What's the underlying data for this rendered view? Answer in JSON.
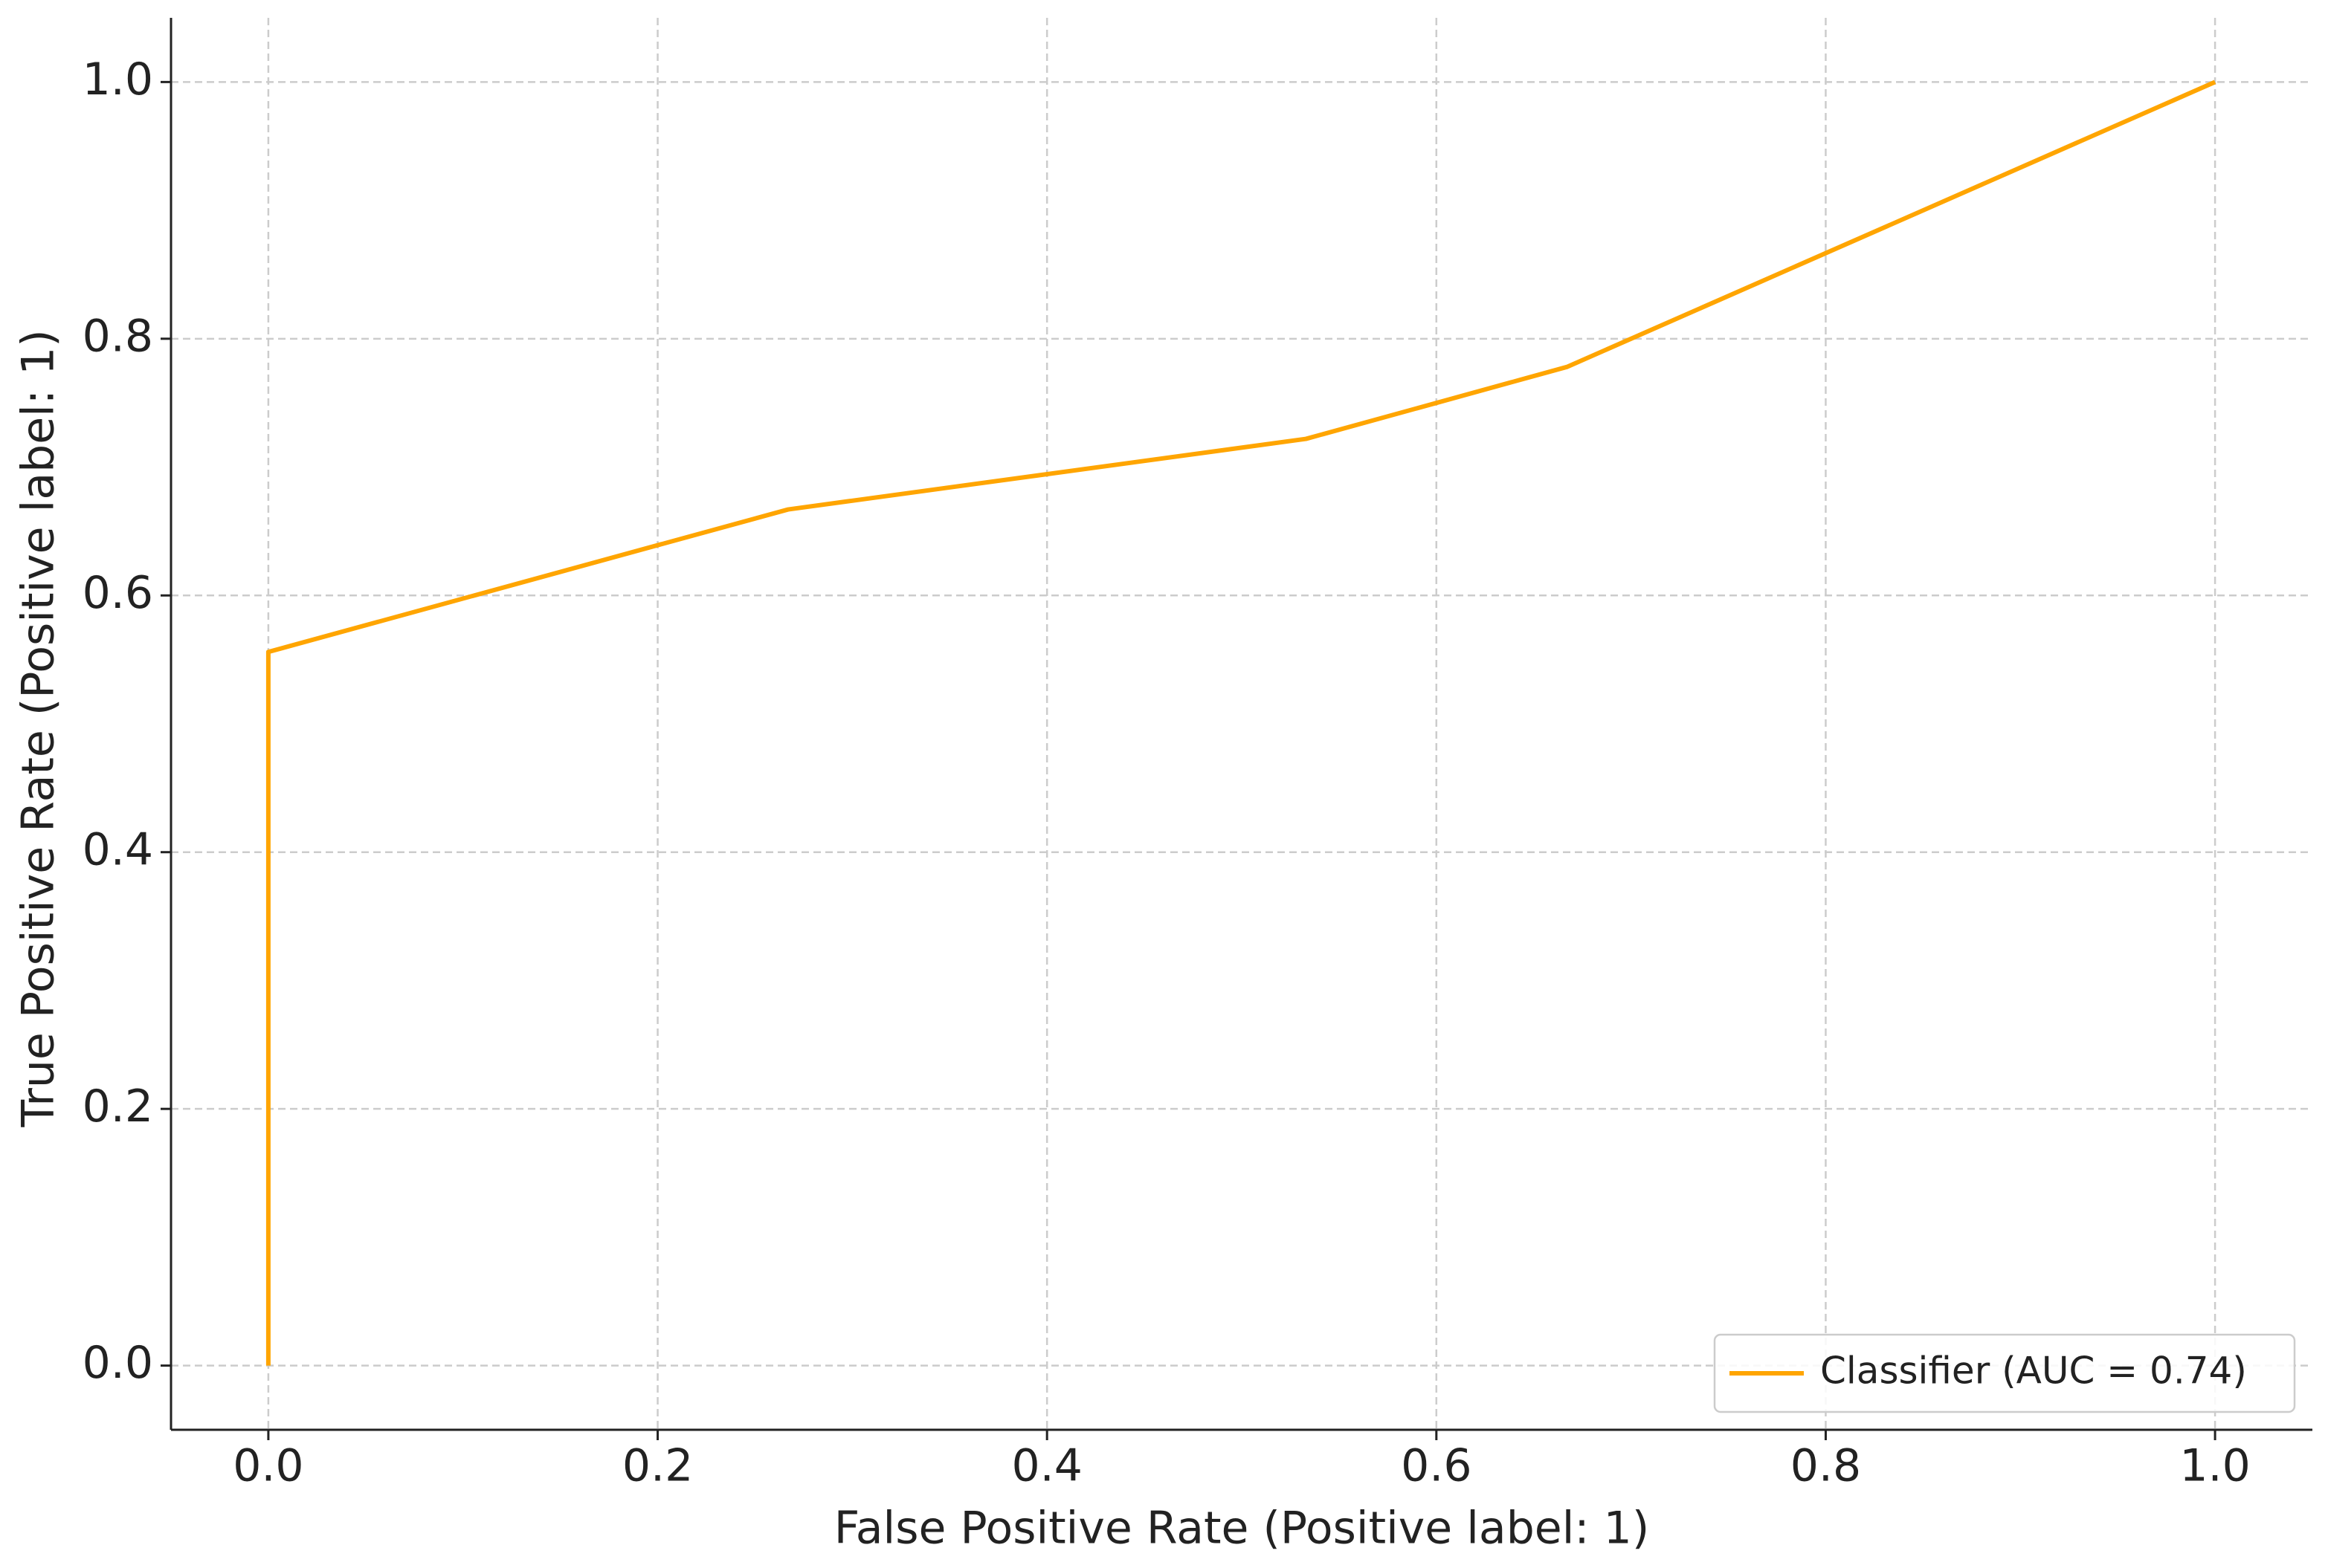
{
  "chart_data": {
    "type": "line",
    "xlabel": "False Positive Rate (Positive label: 1)",
    "ylabel": "True Positive Rate (Positive label: 1)",
    "x": [
      0,
      0,
      0.267,
      0.533,
      0.667,
      1
    ],
    "series": [
      {
        "name": "Classifier (AUC = 0.74)",
        "color": "#ffa500",
        "values": [
          0,
          0.556,
          0.667,
          0.722,
          0.778,
          1
        ]
      }
    ],
    "xlim": [
      -0.05,
      1.05
    ],
    "ylim": [
      -0.05,
      1.05
    ],
    "xticks": [
      {
        "value": 0,
        "label": "0.0"
      },
      0.2,
      0.4,
      0.6,
      0.8,
      {
        "value": 1,
        "label": "1.0"
      }
    ],
    "yticks": [
      {
        "value": 0,
        "label": "0.0"
      },
      0.2,
      0.4,
      0.6,
      0.8,
      {
        "value": 1,
        "label": "1.0"
      }
    ],
    "grid": true,
    "legend": "lower right"
  }
}
